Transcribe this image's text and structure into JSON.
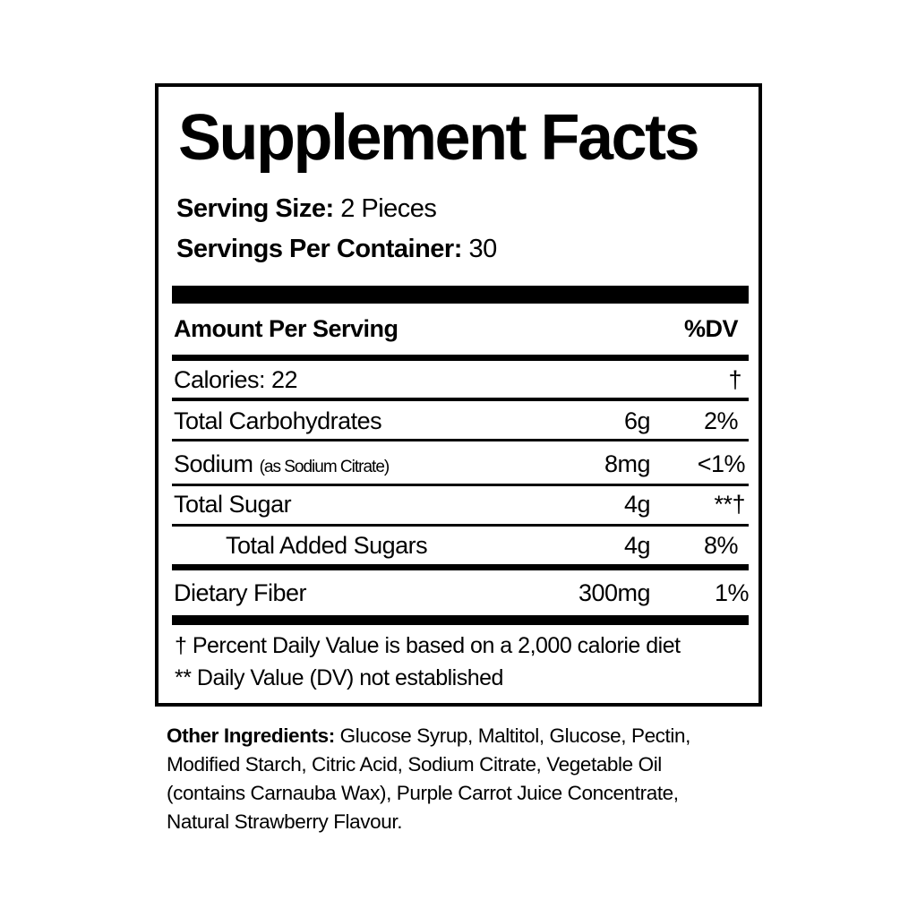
{
  "panel": {
    "title": "Supplement Facts",
    "serving_size_label": "Serving Size:",
    "serving_size_value": "2 Pieces",
    "servings_per_container_label": "Servings Per Container:",
    "servings_per_container_value": "30",
    "header_amount": "Amount Per Serving",
    "header_dv": "%DV",
    "rows": [
      {
        "label": "Calories: 22",
        "note": "",
        "amount": "",
        "dv": "†"
      },
      {
        "label": "Total Carbohydrates",
        "note": "",
        "amount": "6g",
        "dv": "2%"
      },
      {
        "label": "Sodium",
        "note": "(as Sodium Citrate)",
        "amount": "8mg",
        "dv": "<1%"
      },
      {
        "label": "Total Sugar",
        "note": "",
        "amount": "4g",
        "dv": "**†"
      },
      {
        "label": "Total Added Sugars",
        "note": "",
        "amount": "4g",
        "dv": "8%"
      },
      {
        "label": "Dietary Fiber",
        "note": "",
        "amount": "300mg",
        "dv": "1%"
      }
    ],
    "footnotes": [
      "† Percent Daily Value is based on a 2,000 calorie diet",
      "** Daily Value (DV) not established"
    ]
  },
  "ingredients": {
    "label": "Other Ingredients:",
    "text": " Glucose Syrup, Maltitol, Glucose, Pectin, Modified Starch, Citric Acid, Sodium Citrate, Vegetable Oil (contains Carnauba Wax), Purple Carrot Juice Concentrate, Natural Strawberry Flavour."
  }
}
